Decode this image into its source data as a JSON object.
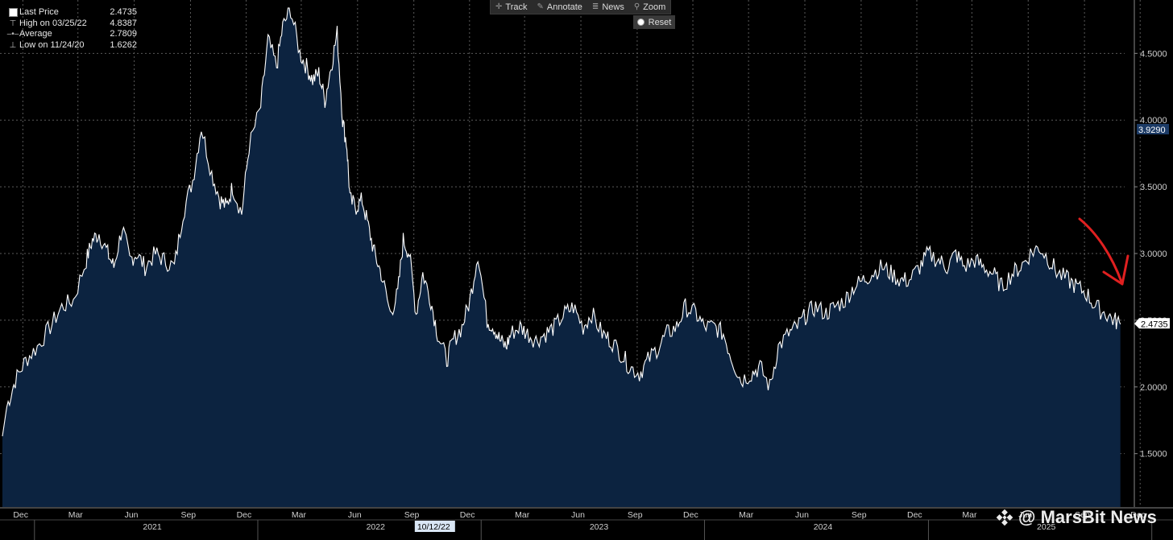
{
  "legend": [
    {
      "label": "Last Price",
      "value": "2.4735",
      "icon": "white-square"
    },
    {
      "label": "High on 03/25/22",
      "value": "4.8387",
      "icon": "high-marker"
    },
    {
      "label": "Average",
      "value": "2.7809",
      "icon": "average-marker"
    },
    {
      "label": "Low on 11/24/20",
      "value": "1.6262",
      "icon": "low-marker"
    }
  ],
  "toolbar": {
    "track": "Track",
    "annotate": "Annotate",
    "news": "News",
    "zoom": "Zoom",
    "reset": "Reset"
  },
  "watermark": "@ MarsBit News",
  "colors": {
    "background": "#000000",
    "area_fill": "#0c2340",
    "line": "#ffffff",
    "grid": "#5a5a5a",
    "annotation_arrow": "#e02020",
    "last_price_tag": "#ffffff",
    "marker_tag": "#1c3b66"
  },
  "chart_data": {
    "type": "area",
    "title": "",
    "xlabel": "",
    "ylabel": "",
    "ylim": [
      1.1,
      4.9
    ],
    "y_ticks": [
      "1.5000",
      "2.0000",
      "2.5000",
      "3.0000",
      "3.5000",
      "4.0000",
      "4.5000"
    ],
    "y_tick_values": [
      1.5,
      2.0,
      2.5,
      3.0,
      3.5,
      4.0,
      4.5
    ],
    "x_month_ticks": [
      "Dec",
      "Mar",
      "Jun",
      "Sep",
      "Dec",
      "Mar",
      "Jun",
      "Sep",
      "Dec",
      "Mar",
      "Jun",
      "Sep",
      "Dec",
      "Mar",
      "Jun",
      "Sep",
      "Dec",
      "Mar",
      "Jun",
      "Sep",
      "Dec"
    ],
    "x_year_labels": [
      "2021",
      "2022",
      "2023",
      "2024",
      "2025"
    ],
    "crosshair_date_label": "10/12/22",
    "last_price_label": "2.4735",
    "last_price": 2.4735,
    "marker_label": "3.9290",
    "marker_value": 3.929,
    "grid": true,
    "series": [
      {
        "name": "Last Price",
        "x": [
          "2020-11-24",
          "2020-12-01",
          "2020-12-15",
          "2021-01-01",
          "2021-01-20",
          "2021-02-10",
          "2021-03-01",
          "2021-03-20",
          "2021-04-10",
          "2021-04-20",
          "2021-05-01",
          "2021-05-15",
          "2021-05-25",
          "2021-06-08",
          "2021-06-20",
          "2021-07-01",
          "2021-07-15",
          "2021-08-01",
          "2021-08-15",
          "2021-09-01",
          "2021-09-15",
          "2021-10-01",
          "2021-10-15",
          "2021-11-01",
          "2021-11-15",
          "2021-11-25",
          "2021-12-05",
          "2021-12-20",
          "2022-01-01",
          "2022-01-20",
          "2022-02-01",
          "2022-02-15",
          "2022-02-25",
          "2022-03-10",
          "2022-03-25",
          "2022-04-05",
          "2022-04-15",
          "2022-04-25",
          "2022-05-05",
          "2022-05-15",
          "2022-05-25",
          "2022-06-03",
          "2022-06-10",
          "2022-06-15",
          "2022-06-25",
          "2022-07-05",
          "2022-07-15",
          "2022-07-25",
          "2022-08-05",
          "2022-08-20",
          "2022-09-01",
          "2022-09-10",
          "2022-09-20",
          "2022-10-01",
          "2022-10-12",
          "2022-10-25",
          "2022-11-05",
          "2022-11-20",
          "2022-12-01",
          "2022-12-15",
          "2022-12-28",
          "2023-01-10",
          "2023-01-25",
          "2023-02-05",
          "2023-02-15",
          "2023-02-25",
          "2023-03-05",
          "2023-03-20",
          "2023-04-01",
          "2023-04-15",
          "2023-05-01",
          "2023-05-15",
          "2023-06-01",
          "2023-06-15",
          "2023-07-01",
          "2023-07-15",
          "2023-08-01",
          "2023-08-15",
          "2023-09-01",
          "2023-09-15",
          "2023-10-01",
          "2023-10-15",
          "2023-11-01",
          "2023-11-15",
          "2023-12-01",
          "2023-12-15",
          "2024-01-01",
          "2024-01-15",
          "2024-02-01",
          "2024-02-15",
          "2024-03-01",
          "2024-03-15",
          "2024-04-01",
          "2024-04-15",
          "2024-05-01",
          "2024-05-15",
          "2024-06-01",
          "2024-06-15",
          "2024-07-01",
          "2024-07-15",
          "2024-08-01",
          "2024-08-15",
          "2024-09-01",
          "2024-09-15",
          "2024-10-01",
          "2024-10-15",
          "2024-11-01",
          "2024-11-15",
          "2024-12-01",
          "2024-12-15",
          "2025-01-01",
          "2025-01-15",
          "2025-02-01",
          "2025-02-15",
          "2025-03-01",
          "2025-03-15",
          "2025-04-01",
          "2025-04-15",
          "2025-05-01",
          "2025-05-15",
          "2025-06-01",
          "2025-06-15",
          "2025-07-01",
          "2025-07-15",
          "2025-08-01",
          "2025-08-15",
          "2025-09-01",
          "2025-09-15",
          "2025-10-01",
          "2025-10-15",
          "2025-11-01",
          "2025-11-15",
          "2025-11-25"
        ],
        "y": [
          1.63,
          1.85,
          2.05,
          2.2,
          2.3,
          2.45,
          2.6,
          2.65,
          2.95,
          3.1,
          3.15,
          3.0,
          2.9,
          3.2,
          2.95,
          3.0,
          2.9,
          3.0,
          2.95,
          2.9,
          3.3,
          3.55,
          3.95,
          3.6,
          3.4,
          3.35,
          3.5,
          3.3,
          3.8,
          4.1,
          4.6,
          4.4,
          4.7,
          4.83,
          4.5,
          4.4,
          4.3,
          4.35,
          4.15,
          4.4,
          4.65,
          4.0,
          3.8,
          3.4,
          3.35,
          3.4,
          3.2,
          3.0,
          2.85,
          2.55,
          2.7,
          3.1,
          3.0,
          2.55,
          2.85,
          2.65,
          2.4,
          2.2,
          2.35,
          2.45,
          2.65,
          3.0,
          2.5,
          2.45,
          2.35,
          2.3,
          2.4,
          2.45,
          2.4,
          2.35,
          2.4,
          2.45,
          2.55,
          2.6,
          2.45,
          2.55,
          2.4,
          2.35,
          2.25,
          2.15,
          2.1,
          2.2,
          2.3,
          2.4,
          2.45,
          2.6,
          2.55,
          2.45,
          2.45,
          2.4,
          2.2,
          2.05,
          2.1,
          2.15,
          2.0,
          2.3,
          2.4,
          2.45,
          2.55,
          2.6,
          2.55,
          2.6,
          2.65,
          2.75,
          2.8,
          2.85,
          2.9,
          2.85,
          2.8,
          2.8,
          2.9,
          3.0,
          2.95,
          2.9,
          3.0,
          2.9,
          2.95,
          2.9,
          2.85,
          2.75,
          2.85,
          2.9,
          3.0,
          3.05,
          2.95,
          2.85,
          2.8,
          2.75,
          2.7,
          2.6,
          2.55,
          2.5,
          2.47
        ]
      }
    ]
  }
}
